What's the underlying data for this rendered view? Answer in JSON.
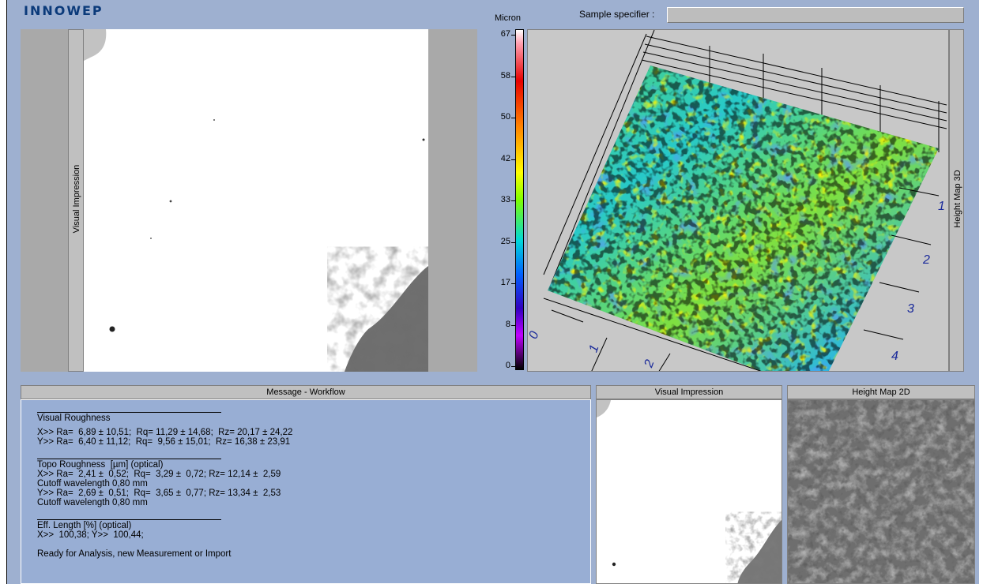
{
  "app": {
    "logo": "INNOWEP"
  },
  "sample": {
    "label": "Sample specifier :",
    "value": ""
  },
  "panels": {
    "visual_impression_label": "Visual Impression",
    "height_map_3d_label": "Height Map 3D",
    "message_workflow_title": "Message - Workflow",
    "visual_impression_small_title": "Visual Impression",
    "height_map_2d_title": "Height Map 2D"
  },
  "colorbar": {
    "unit": "Micron",
    "ticks": [
      "67",
      "58",
      "50",
      "42",
      "33",
      "25",
      "17",
      "8",
      "0"
    ]
  },
  "axes3d": {
    "right_labels": [
      "1",
      "2",
      "3",
      "4"
    ],
    "bottom_labels": [
      "0",
      "1",
      "2"
    ]
  },
  "messages": {
    "visual_roughness_title": "Visual Roughness",
    "vr_x": "X>> Ra=  6,89 ± 10,51;  Rq= 11,29 ± 14,68;  Rz= 20,17 ± 24,22",
    "vr_y": "Y>> Ra=  6,40 ± 11,12;  Rq=  9,56 ± 15,01;  Rz= 16,38 ± 23,91",
    "topo_title": "Topo Roughness  [µm] (optical)",
    "topo_x": "X>> Ra=  2,41 ±  0,52;  Rq=  3,29 ±  0,72; Rz= 12,14 ±  2,59",
    "topo_x_cutoff": "Cutoff wavelength 0,80 mm",
    "topo_y": "Y>> Ra=  2,69 ±  0,51;  Rq=  3,65 ±  0,77; Rz= 13,34 ±  2,53",
    "topo_y_cutoff": "Cutoff wavelength 0,80 mm",
    "eff_title": "Eff. Length [%] (optical)",
    "eff_values": "X>>  100,38; Y>>  100,44;",
    "ready": "Ready for Analysis, new Measurement or Import"
  }
}
